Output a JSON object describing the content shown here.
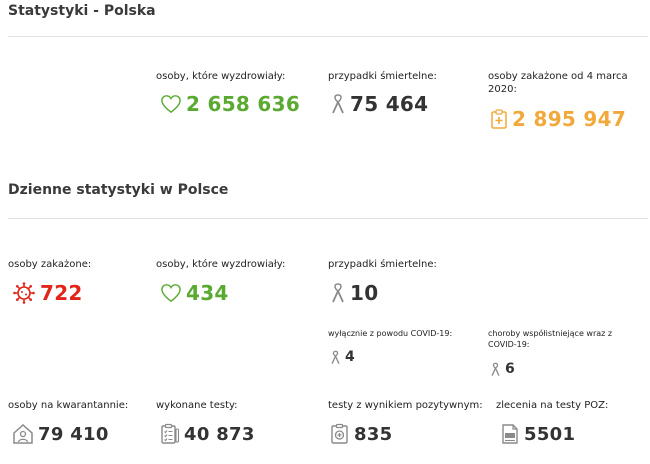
{
  "colors": {
    "green": "#5aaa32",
    "orange": "#f2a93b",
    "red": "#e1251b",
    "dark": "#333333",
    "gray_icon": "#8a8a8a"
  },
  "summary": {
    "title": "Statystyki - Polska",
    "recovered": {
      "label": "osoby, które wyzdrowiały:",
      "value": "2 658 636",
      "icon": "heart-icon"
    },
    "deaths": {
      "label": "przypadki śmiertelne:",
      "value": "75 464",
      "icon": "ribbon-icon"
    },
    "infected": {
      "label": "osoby zakażone od 4 marca 2020:",
      "value": "2 895 947",
      "icon": "clipboard-medical-icon"
    }
  },
  "daily": {
    "title": "Dzienne statystyki w Polsce",
    "infected": {
      "label": "osoby zakażone:",
      "value": "722",
      "icon": "virus-icon"
    },
    "recovered": {
      "label": "osoby, które wyzdrowiały:",
      "value": "434",
      "icon": "heart-icon"
    },
    "deaths": {
      "label": "przypadki śmiertelne:",
      "value": "10",
      "icon": "ribbon-icon"
    },
    "covid_only": {
      "label": "wyłącznie z powodu COVID-19:",
      "value": "4",
      "icon": "ribbon-icon"
    },
    "comorbid": {
      "label": "choroby współistniejące wraz z COVID-19:",
      "value": "6",
      "icon": "ribbon-icon"
    },
    "quarantine": {
      "label": "osoby na kwarantannie:",
      "value": "79 410",
      "icon": "home-person-icon"
    },
    "tests": {
      "label": "wykonane testy:",
      "value": "40 873",
      "icon": "test-checklist-icon"
    },
    "positive_tests": {
      "label": "testy z wynikiem pozytywnym:",
      "value": "835",
      "icon": "positive-test-icon"
    },
    "poz_orders": {
      "label": "zlecenia na testy POZ:",
      "value": "5501",
      "icon": "poz-document-icon"
    }
  }
}
